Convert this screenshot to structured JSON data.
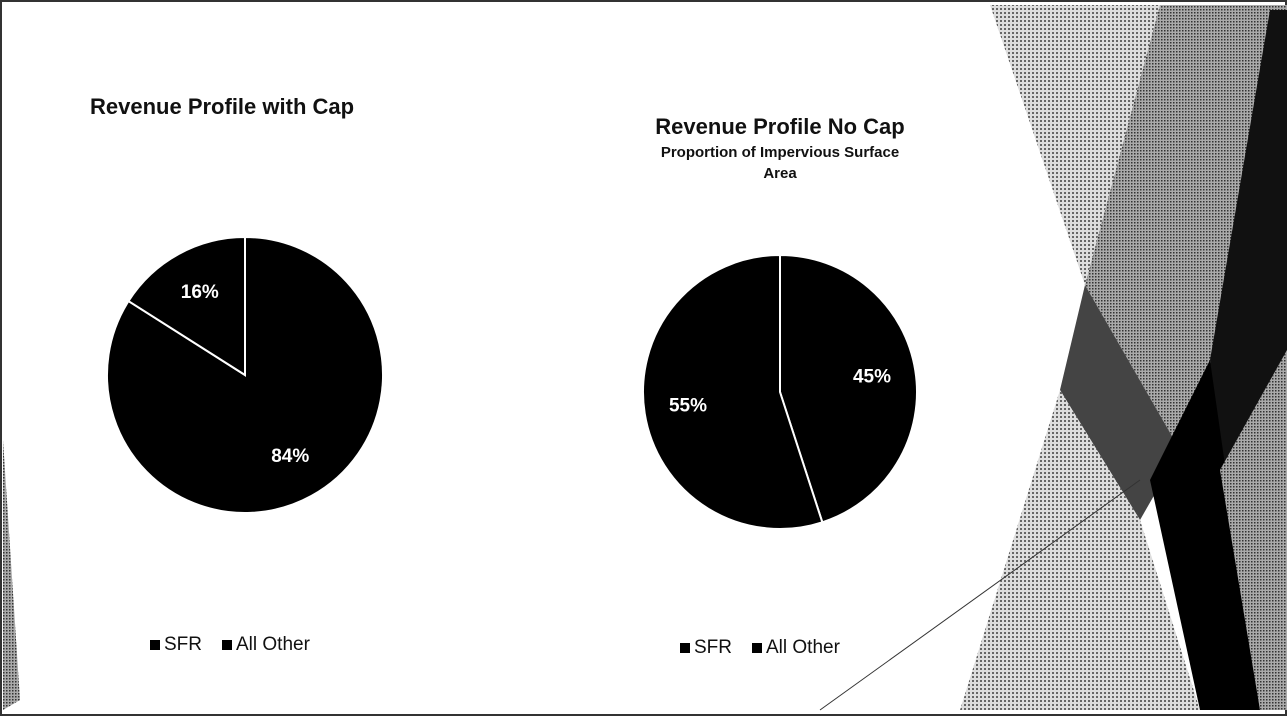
{
  "chart_data": [
    {
      "type": "pie",
      "title": "Revenue Profile with Cap",
      "categories": [
        "SFR",
        "All Other"
      ],
      "values": [
        84,
        16
      ],
      "value_labels": [
        "84%",
        "16%"
      ],
      "colors": [
        "#000000",
        "#000000"
      ]
    },
    {
      "type": "pie",
      "title": "Revenue Profile No Cap",
      "subtitle": "Proportion of Impervious Surface Area",
      "categories": [
        "SFR",
        "All Other"
      ],
      "values": [
        45,
        55
      ],
      "value_labels": [
        "45%",
        "55%"
      ],
      "colors": [
        "#000000",
        "#000000"
      ]
    }
  ]
}
